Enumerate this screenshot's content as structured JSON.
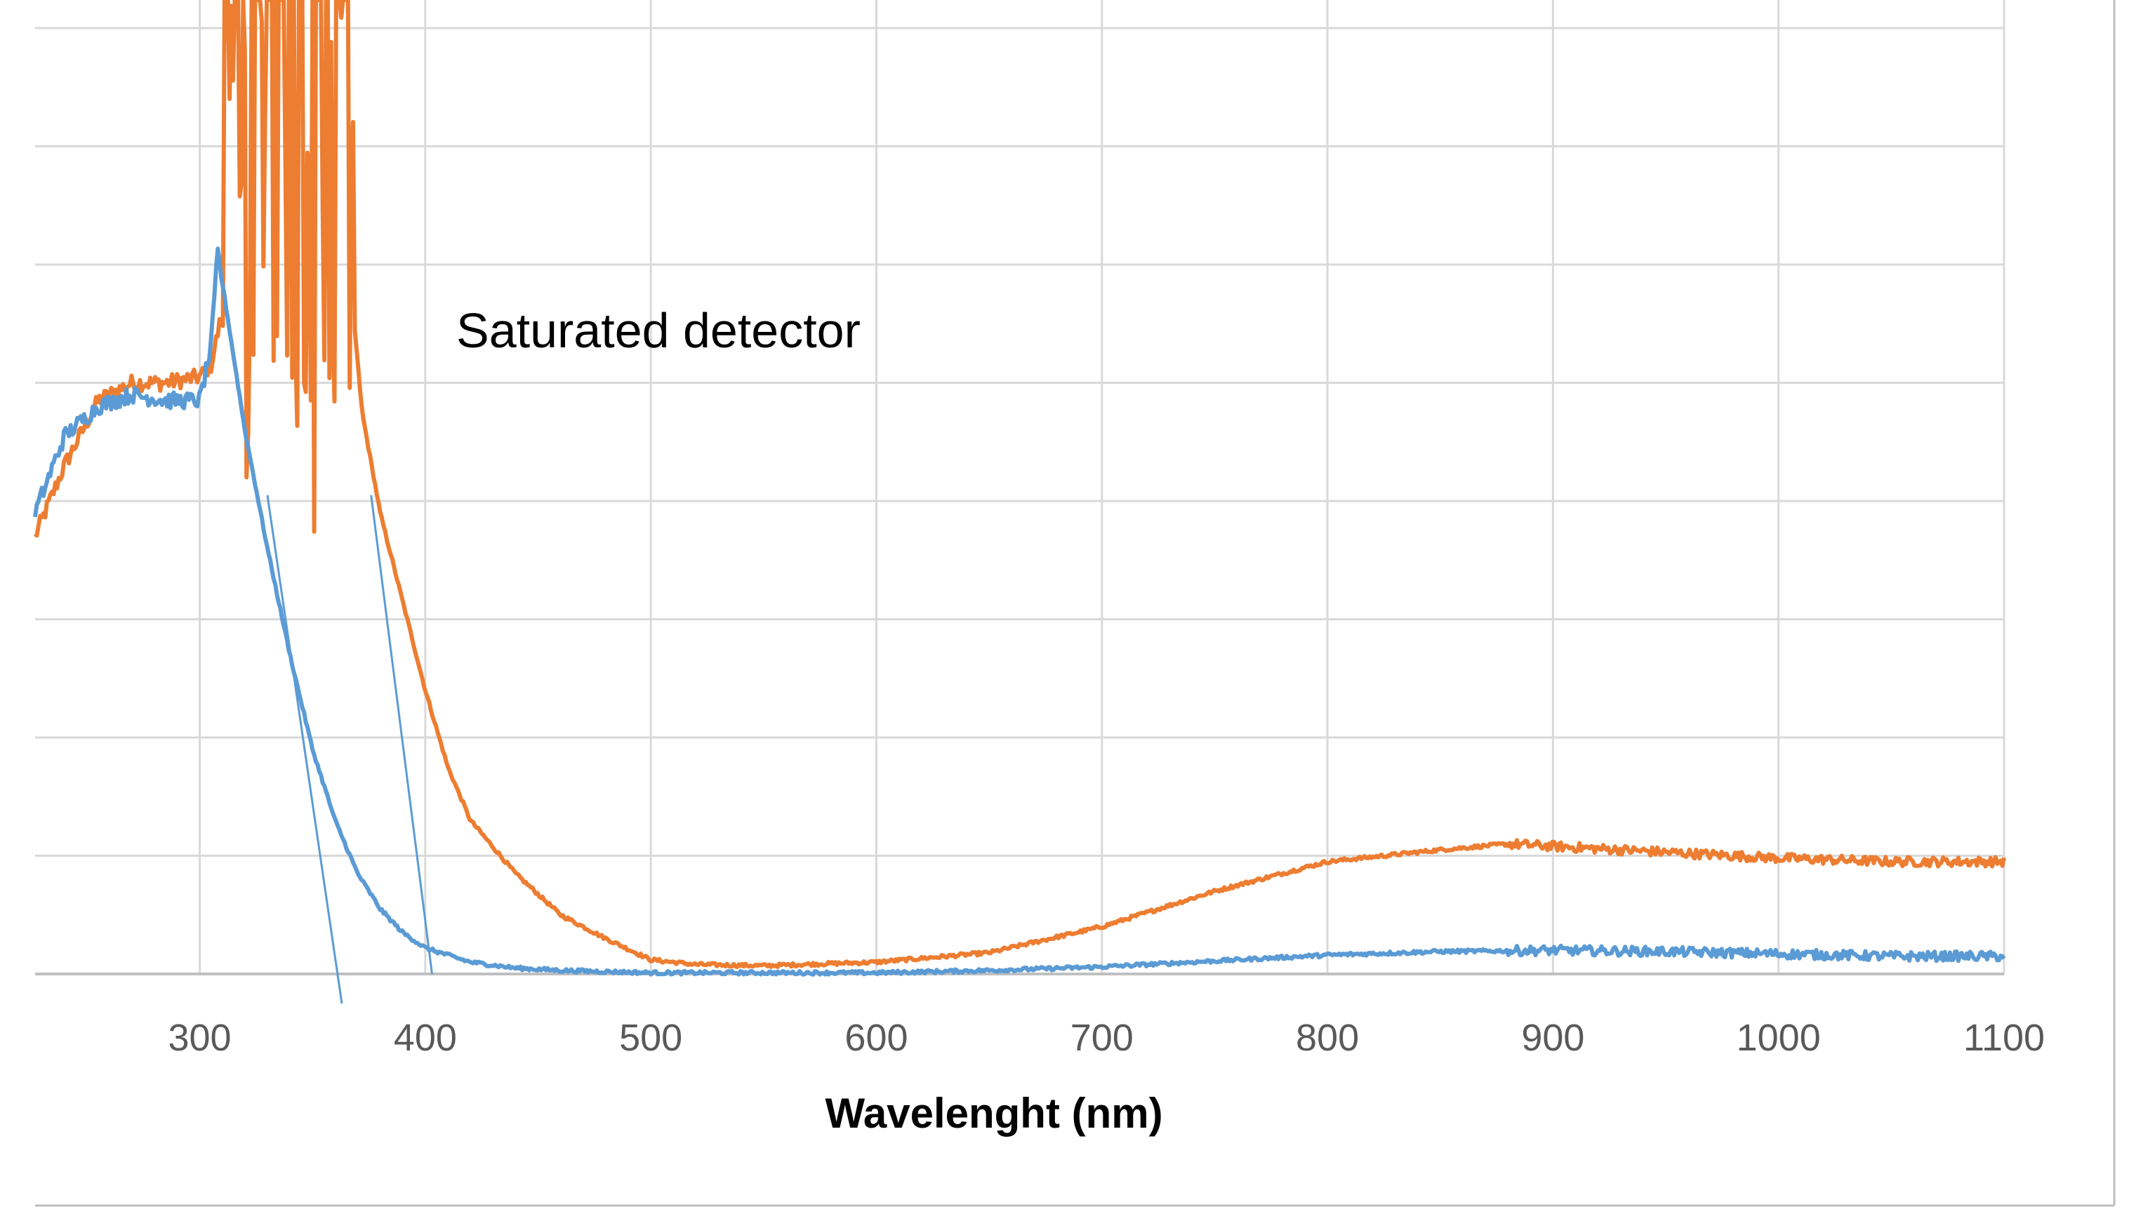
{
  "chart_data": {
    "type": "line",
    "title": "",
    "xlabel": "Wavelenght (nm)",
    "ylabel": "",
    "xlim": [
      227,
      1100
    ],
    "ylim": [
      0,
      8
    ],
    "x_ticks": [
      300,
      400,
      500,
      600,
      700,
      800,
      900,
      1000,
      1100
    ],
    "y_ticks": [
      0,
      1,
      2,
      3,
      4,
      5,
      6,
      7,
      8
    ],
    "show_y_tick_labels": false,
    "grid": true,
    "legend": "none",
    "annotations": [
      {
        "text": "Saturated detector",
        "x": 412,
        "y": 5.8
      }
    ],
    "series": [
      {
        "color": "#ED7D31",
        "saturated_range": [
          310,
          368
        ],
        "x": [
          227,
          240,
          255,
          270,
          285,
          300,
          305,
          310,
          368,
          372,
          380,
          390,
          400,
          410,
          420,
          440,
          460,
          480,
          500,
          520,
          550,
          600,
          650,
          700,
          750,
          800,
          850,
          880,
          900,
          950,
          1000,
          1050,
          1100
        ],
        "y": [
          3.7,
          4.3,
          4.85,
          5.0,
          5.0,
          5.05,
          5.15,
          5.6,
          5.6,
          4.75,
          3.9,
          3.15,
          2.4,
          1.75,
          1.3,
          0.85,
          0.5,
          0.3,
          0.12,
          0.08,
          0.07,
          0.1,
          0.18,
          0.4,
          0.7,
          0.95,
          1.05,
          1.1,
          1.08,
          1.03,
          0.98,
          0.95,
          0.95
        ],
        "noise_from_x": 880
      },
      {
        "color": "#5B9BD5",
        "x": [
          227,
          240,
          255,
          270,
          285,
          300,
          305,
          308,
          312,
          316,
          320,
          330,
          340,
          350,
          360,
          370,
          380,
          390,
          400,
          420,
          440,
          460,
          480,
          500,
          550,
          600,
          650,
          700,
          750,
          800,
          850,
          900,
          950,
          1000,
          1050,
          1100
        ],
        "y": [
          3.9,
          4.55,
          4.8,
          4.9,
          4.85,
          4.85,
          5.3,
          6.1,
          5.6,
          5.1,
          4.6,
          3.6,
          2.7,
          1.9,
          1.3,
          0.85,
          0.55,
          0.35,
          0.22,
          0.1,
          0.05,
          0.03,
          0.02,
          0.01,
          0.01,
          0.01,
          0.03,
          0.06,
          0.11,
          0.16,
          0.19,
          0.2,
          0.19,
          0.17,
          0.15,
          0.15
        ],
        "noise_from_x": 880
      },
      {
        "color": "#5B9BD5",
        "x": [
          330,
          363
        ],
        "y": [
          4.05,
          -0.25
        ]
      },
      {
        "color": "#5B9BD5",
        "x": [
          376,
          403
        ],
        "y": [
          4.05,
          0.0
        ]
      }
    ]
  }
}
